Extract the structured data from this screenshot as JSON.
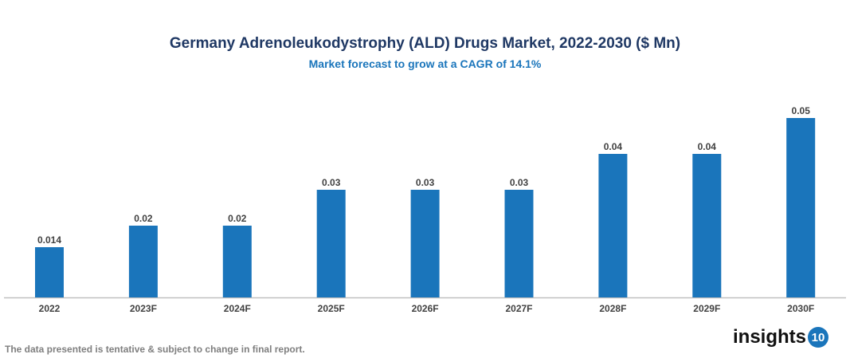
{
  "chart_data": {
    "type": "bar",
    "title": "Germany Adrenoleukodystrophy (ALD) Drugs Market, 2022-2030 ($ Mn)",
    "subtitle": "Market forecast to grow at a CAGR of 14.1%",
    "categories": [
      "2022",
      "2023F",
      "2024F",
      "2025F",
      "2026F",
      "2027F",
      "2028F",
      "2029F",
      "2030F"
    ],
    "values": [
      0.014,
      0.02,
      0.02,
      0.03,
      0.03,
      0.03,
      0.04,
      0.04,
      0.05
    ],
    "labels": [
      "0.014",
      "0.02",
      "0.02",
      "0.03",
      "0.03",
      "0.03",
      "0.04",
      "0.04",
      "0.05"
    ],
    "xlabel": "",
    "ylabel": "",
    "ylim": [
      0,
      0.055
    ],
    "grid": false,
    "bar_color": "#1a75bb"
  },
  "footer": "The data presented is tentative & subject to change in final report.",
  "logo": {
    "text": "insights",
    "badge": "10"
  }
}
